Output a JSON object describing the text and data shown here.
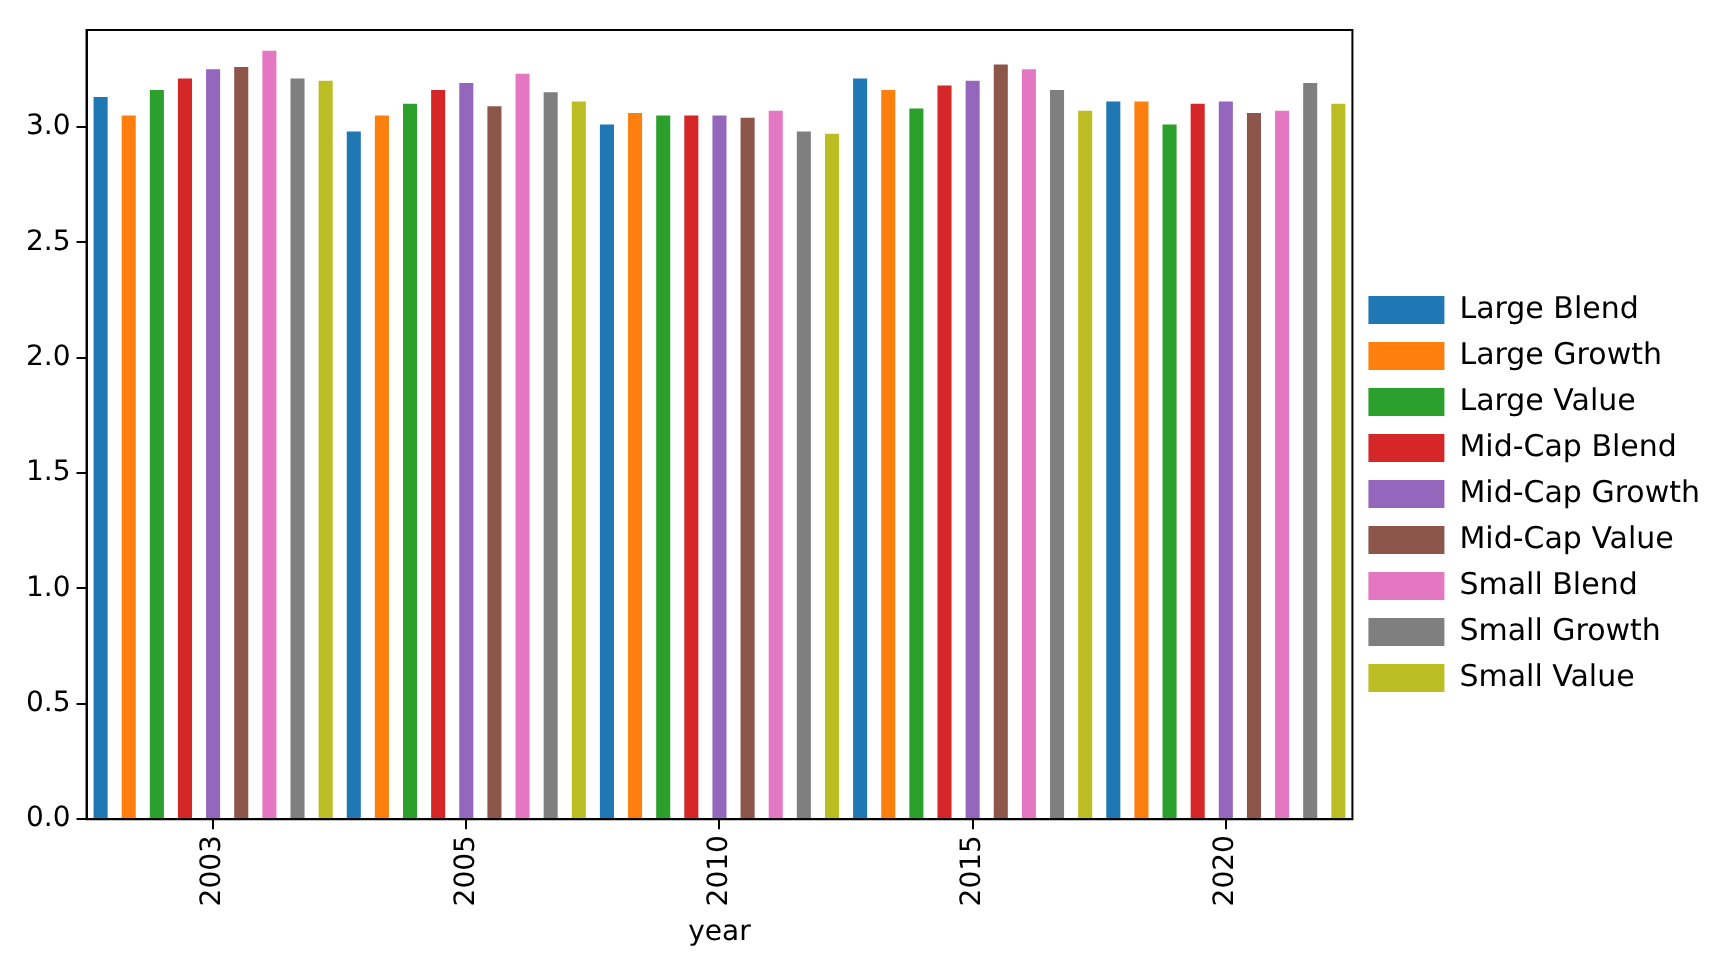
{
  "chart_data": {
    "type": "bar",
    "xlabel": "year",
    "categories": [
      "2003",
      "2005",
      "2010",
      "2015",
      "2020"
    ],
    "series": [
      {
        "name": "Large Blend",
        "color": "#1f77b4",
        "values": [
          3.13,
          2.98,
          3.01,
          3.21,
          3.11
        ]
      },
      {
        "name": "Large Growth",
        "color": "#ff7f0e",
        "values": [
          3.05,
          3.05,
          3.06,
          3.16,
          3.11
        ]
      },
      {
        "name": "Large Value",
        "color": "#2ca02c",
        "values": [
          3.16,
          3.1,
          3.05,
          3.08,
          3.01
        ]
      },
      {
        "name": "Mid-Cap Blend",
        "color": "#d62728",
        "values": [
          3.21,
          3.16,
          3.05,
          3.18,
          3.1
        ]
      },
      {
        "name": "Mid-Cap Growth",
        "color": "#9467bd",
        "values": [
          3.25,
          3.19,
          3.05,
          3.2,
          3.11
        ]
      },
      {
        "name": "Mid-Cap Value",
        "color": "#8c564b",
        "values": [
          3.26,
          3.09,
          3.04,
          3.27,
          3.06
        ]
      },
      {
        "name": "Small Blend",
        "color": "#e377c2",
        "values": [
          3.33,
          3.23,
          3.07,
          3.25,
          3.07
        ]
      },
      {
        "name": "Small Growth",
        "color": "#7f7f7f",
        "values": [
          3.21,
          3.15,
          2.98,
          3.16,
          3.19
        ]
      },
      {
        "name": "Small Value",
        "color": "#bcbd22",
        "values": [
          3.2,
          3.11,
          2.97,
          3.07,
          3.1
        ]
      }
    ],
    "ylim": [
      0,
      3.42
    ],
    "yticks": [
      {
        "value": 0,
        "label": "0.0"
      },
      {
        "value": 0.5,
        "label": "0.5"
      },
      {
        "value": 1,
        "label": "1.0"
      },
      {
        "value": 1.5,
        "label": "1.5"
      },
      {
        "value": 2,
        "label": "2.0"
      },
      {
        "value": 2.5,
        "label": "2.5"
      },
      {
        "value": 3,
        "label": "3.0"
      }
    ],
    "grid": false,
    "legend": "right"
  }
}
